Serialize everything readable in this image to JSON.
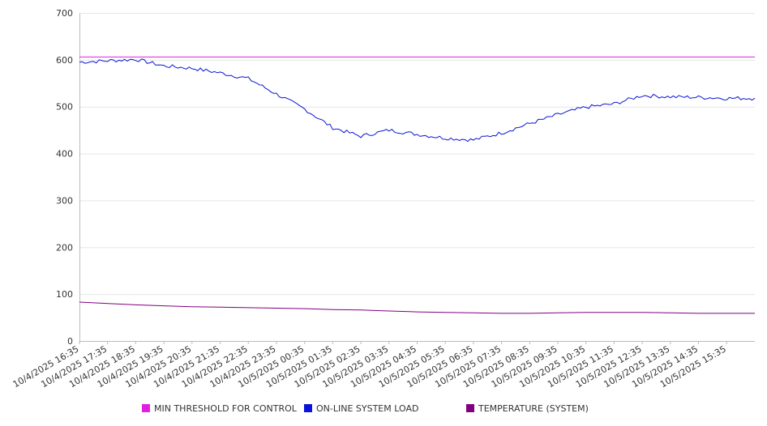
{
  "chart_data": {
    "type": "line",
    "x": [
      "10/4/2025 16:35",
      "10/4/2025 17:35",
      "10/4/2025 18:35",
      "10/4/2025 19:35",
      "10/4/2025 20:35",
      "10/4/2025 21:35",
      "10/4/2025 22:35",
      "10/4/2025 23:35",
      "10/5/2025 00:35",
      "10/5/2025 01:35",
      "10/5/2025 02:35",
      "10/5/2025 03:35",
      "10/5/2025 04:35",
      "10/5/2025 05:35",
      "10/5/2025 06:35",
      "10/5/2025 07:35",
      "10/5/2025 08:35",
      "10/5/2025 09:35",
      "10/5/2025 10:35",
      "10/5/2025 11:35",
      "10/5/2025 12:35",
      "10/5/2025 13:35",
      "10/5/2025 14:35",
      "10/5/2025 15:35"
    ],
    "ylim": [
      0,
      700
    ],
    "yticks": [
      0,
      100,
      200,
      300,
      400,
      500,
      600,
      700
    ],
    "grid": true,
    "legend_position": "bottom",
    "series": [
      {
        "name": "MIN THRESHOLD FOR CONTROL",
        "color": "#e020e0",
        "values": [
          606,
          606,
          606,
          606,
          606,
          606,
          606,
          606,
          606,
          606,
          606,
          606,
          606,
          606,
          606,
          606,
          606,
          606,
          606,
          606,
          606,
          606,
          606,
          606
        ]
      },
      {
        "name": "ON-LINE SYSTEM LOAD",
        "color": "#0a14d8",
        "values": [
          595,
          598,
          601,
          587,
          582,
          572,
          560,
          527,
          495,
          455,
          437,
          450,
          441,
          433,
          429,
          444,
          464,
          483,
          499,
          506,
          524,
          521,
          520,
          518
        ]
      },
      {
        "name": "TEMPERATURE (SYSTEM)",
        "color": "#800080",
        "values": [
          83,
          80,
          77,
          75,
          73,
          72,
          71,
          70,
          69,
          67,
          66,
          64,
          62,
          61,
          60,
          59,
          59,
          60,
          61,
          61,
          61,
          60,
          59,
          59
        ]
      }
    ]
  }
}
